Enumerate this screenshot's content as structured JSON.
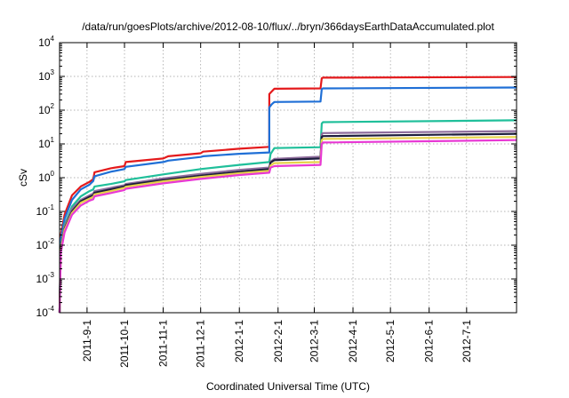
{
  "chart_data": {
    "type": "line",
    "title": "/data/run/goesPlots/archive/2012-08-10/flux/../bryn/366daysEarthDataAccumulated.plot",
    "xlabel": "Coordinated Universal Time (UTC)",
    "ylabel": "cSv",
    "yscale": "log",
    "ylim": [
      "1e-4",
      "1e4"
    ],
    "xlim": [
      "2011-08-10",
      "2012-08-10"
    ],
    "grid": true,
    "x_ticks": [
      {
        "date": "2011-09-01",
        "label": "2011-9-1"
      },
      {
        "date": "2011-10-01",
        "label": "2011-10-1"
      },
      {
        "date": "2011-11-01",
        "label": "2011-11-1"
      },
      {
        "date": "2011-12-01",
        "label": "2011-12-1"
      },
      {
        "date": "2012-01-01",
        "label": "2012-1-1"
      },
      {
        "date": "2012-02-01",
        "label": "2012-2-1"
      },
      {
        "date": "2012-03-01",
        "label": "2012-3-1"
      },
      {
        "date": "2012-04-01",
        "label": "2012-4-1"
      },
      {
        "date": "2012-05-01",
        "label": "2012-5-1"
      },
      {
        "date": "2012-06-01",
        "label": "2012-6-1"
      },
      {
        "date": "2012-07-01",
        "label": "2012-7-1"
      }
    ],
    "y_ticks": [
      {
        "value": 0.0001,
        "base": "10",
        "exp": "-4"
      },
      {
        "value": 0.001,
        "base": "10",
        "exp": "-3"
      },
      {
        "value": 0.01,
        "base": "10",
        "exp": "-2"
      },
      {
        "value": 0.1,
        "base": "10",
        "exp": "-1"
      },
      {
        "value": 1,
        "base": "10",
        "exp": "0"
      },
      {
        "value": 10,
        "base": "10",
        "exp": "1"
      },
      {
        "value": 100,
        "base": "10",
        "exp": "2"
      },
      {
        "value": 1000,
        "base": "10",
        "exp": "3"
      },
      {
        "value": 10000,
        "base": "10",
        "exp": "4"
      }
    ],
    "series": [
      {
        "color": "#e41a1c",
        "points": [
          [
            "2011-08-10",
            0.0001
          ],
          [
            "2011-08-11",
            0.02
          ],
          [
            "2011-08-14",
            0.08
          ],
          [
            "2011-08-20",
            0.3
          ],
          [
            "2011-08-27",
            0.55
          ],
          [
            "2011-09-03",
            0.75
          ],
          [
            "2011-09-06",
            0.9
          ],
          [
            "2011-09-07",
            1.45
          ],
          [
            "2011-09-20",
            1.9
          ],
          [
            "2011-10-01",
            2.2
          ],
          [
            "2011-10-02",
            2.9
          ],
          [
            "2011-11-01",
            3.7
          ],
          [
            "2011-11-05",
            4.3
          ],
          [
            "2011-12-01",
            5.3
          ],
          [
            "2011-12-03",
            5.9
          ],
          [
            "2012-01-01",
            7.2
          ],
          [
            "2012-01-25",
            8.2
          ],
          [
            "2012-01-25",
            300
          ],
          [
            "2012-01-27",
            360
          ],
          [
            "2012-01-29",
            430
          ],
          [
            "2012-03-06",
            440
          ],
          [
            "2012-03-07",
            880
          ],
          [
            "2012-03-08",
            920
          ],
          [
            "2012-08-10",
            960
          ]
        ]
      },
      {
        "color": "#1f6fd6",
        "points": [
          [
            "2011-08-10",
            0.0001
          ],
          [
            "2011-08-11",
            0.015
          ],
          [
            "2011-08-14",
            0.06
          ],
          [
            "2011-08-20",
            0.22
          ],
          [
            "2011-08-27",
            0.45
          ],
          [
            "2011-09-03",
            0.62
          ],
          [
            "2011-09-06",
            0.8
          ],
          [
            "2011-09-07",
            1.1
          ],
          [
            "2011-09-20",
            1.5
          ],
          [
            "2011-10-01",
            1.8
          ],
          [
            "2011-10-02",
            2.1
          ],
          [
            "2011-11-01",
            2.9
          ],
          [
            "2011-11-05",
            3.2
          ],
          [
            "2011-12-01",
            4.1
          ],
          [
            "2011-12-03",
            4.3
          ],
          [
            "2012-01-01",
            5.1
          ],
          [
            "2012-01-25",
            5.6
          ],
          [
            "2012-01-25",
            120
          ],
          [
            "2012-01-27",
            150
          ],
          [
            "2012-01-29",
            175
          ],
          [
            "2012-03-06",
            180
          ],
          [
            "2012-03-07",
            420
          ],
          [
            "2012-03-08",
            440
          ],
          [
            "2012-08-10",
            470
          ]
        ]
      },
      {
        "color": "#1fbf9a",
        "points": [
          [
            "2011-08-10",
            0.0001
          ],
          [
            "2011-08-11",
            0.01
          ],
          [
            "2011-08-14",
            0.04
          ],
          [
            "2011-08-20",
            0.14
          ],
          [
            "2011-08-27",
            0.28
          ],
          [
            "2011-09-03",
            0.4
          ],
          [
            "2011-09-06",
            0.45
          ],
          [
            "2011-09-07",
            0.55
          ],
          [
            "2011-09-20",
            0.65
          ],
          [
            "2011-10-01",
            0.78
          ],
          [
            "2011-10-02",
            0.85
          ],
          [
            "2011-11-01",
            1.25
          ],
          [
            "2011-12-01",
            1.8
          ],
          [
            "2012-01-01",
            2.4
          ],
          [
            "2012-01-25",
            2.9
          ],
          [
            "2012-01-26",
            5.0
          ],
          [
            "2012-01-29",
            7.5
          ],
          [
            "2012-03-06",
            8.0
          ],
          [
            "2012-03-07",
            40
          ],
          [
            "2012-03-08",
            44
          ],
          [
            "2012-08-10",
            50
          ]
        ]
      },
      {
        "color": "#8e6d9c",
        "points": [
          [
            "2011-08-10",
            0.0001
          ],
          [
            "2011-08-11",
            0.009
          ],
          [
            "2011-08-14",
            0.035
          ],
          [
            "2011-08-20",
            0.12
          ],
          [
            "2011-08-27",
            0.22
          ],
          [
            "2011-09-03",
            0.3
          ],
          [
            "2011-09-06",
            0.34
          ],
          [
            "2011-09-07",
            0.4
          ],
          [
            "2011-09-20",
            0.5
          ],
          [
            "2011-10-01",
            0.6
          ],
          [
            "2011-10-02",
            0.65
          ],
          [
            "2011-11-01",
            0.95
          ],
          [
            "2011-12-01",
            1.3
          ],
          [
            "2012-01-01",
            1.7
          ],
          [
            "2012-01-25",
            2.0
          ],
          [
            "2012-01-26",
            3.0
          ],
          [
            "2012-01-29",
            3.6
          ],
          [
            "2012-03-06",
            4.2
          ],
          [
            "2012-03-07",
            19
          ],
          [
            "2012-03-08",
            21
          ],
          [
            "2012-08-10",
            24
          ]
        ]
      },
      {
        "color": "#1c1c3c",
        "points": [
          [
            "2011-08-10",
            0.0001
          ],
          [
            "2011-08-11",
            0.008
          ],
          [
            "2011-08-14",
            0.03
          ],
          [
            "2011-08-20",
            0.1
          ],
          [
            "2011-08-27",
            0.2
          ],
          [
            "2011-09-03",
            0.27
          ],
          [
            "2011-09-06",
            0.3
          ],
          [
            "2011-09-07",
            0.36
          ],
          [
            "2011-09-20",
            0.45
          ],
          [
            "2011-10-01",
            0.55
          ],
          [
            "2011-10-02",
            0.6
          ],
          [
            "2011-11-01",
            0.85
          ],
          [
            "2011-12-01",
            1.15
          ],
          [
            "2012-01-01",
            1.5
          ],
          [
            "2012-01-25",
            1.8
          ],
          [
            "2012-01-26",
            2.8
          ],
          [
            "2012-01-29",
            3.3
          ],
          [
            "2012-03-06",
            3.7
          ],
          [
            "2012-03-07",
            16
          ],
          [
            "2012-03-08",
            17
          ],
          [
            "2012-08-10",
            20
          ]
        ]
      },
      {
        "color": "#e6d24a",
        "points": [
          [
            "2011-08-10",
            0.0001
          ],
          [
            "2011-08-11",
            0.007
          ],
          [
            "2011-08-14",
            0.028
          ],
          [
            "2011-08-20",
            0.09
          ],
          [
            "2011-08-27",
            0.18
          ],
          [
            "2011-09-03",
            0.24
          ],
          [
            "2011-09-06",
            0.27
          ],
          [
            "2011-09-07",
            0.32
          ],
          [
            "2011-09-20",
            0.4
          ],
          [
            "2011-10-01",
            0.5
          ],
          [
            "2011-10-02",
            0.54
          ],
          [
            "2011-11-01",
            0.78
          ],
          [
            "2011-12-01",
            1.05
          ],
          [
            "2012-01-01",
            1.35
          ],
          [
            "2012-01-25",
            1.6
          ],
          [
            "2012-01-26",
            2.3
          ],
          [
            "2012-01-29",
            2.7
          ],
          [
            "2012-03-06",
            2.9
          ],
          [
            "2012-03-07",
            13
          ],
          [
            "2012-03-08",
            14
          ],
          [
            "2012-08-10",
            16
          ]
        ]
      },
      {
        "color": "#e838d4",
        "points": [
          [
            "2011-08-10",
            0.0001
          ],
          [
            "2011-08-11",
            0.006
          ],
          [
            "2011-08-14",
            0.024
          ],
          [
            "2011-08-20",
            0.08
          ],
          [
            "2011-08-27",
            0.15
          ],
          [
            "2011-09-03",
            0.21
          ],
          [
            "2011-09-06",
            0.23
          ],
          [
            "2011-09-07",
            0.28
          ],
          [
            "2011-09-20",
            0.35
          ],
          [
            "2011-10-01",
            0.43
          ],
          [
            "2011-10-02",
            0.47
          ],
          [
            "2011-11-01",
            0.68
          ],
          [
            "2011-12-01",
            0.92
          ],
          [
            "2012-01-01",
            1.2
          ],
          [
            "2012-01-25",
            1.4
          ],
          [
            "2012-01-26",
            2.0
          ],
          [
            "2012-01-29",
            2.2
          ],
          [
            "2012-03-06",
            2.4
          ],
          [
            "2012-03-07",
            10
          ],
          [
            "2012-03-08",
            11
          ],
          [
            "2012-08-10",
            13
          ]
        ]
      }
    ]
  }
}
